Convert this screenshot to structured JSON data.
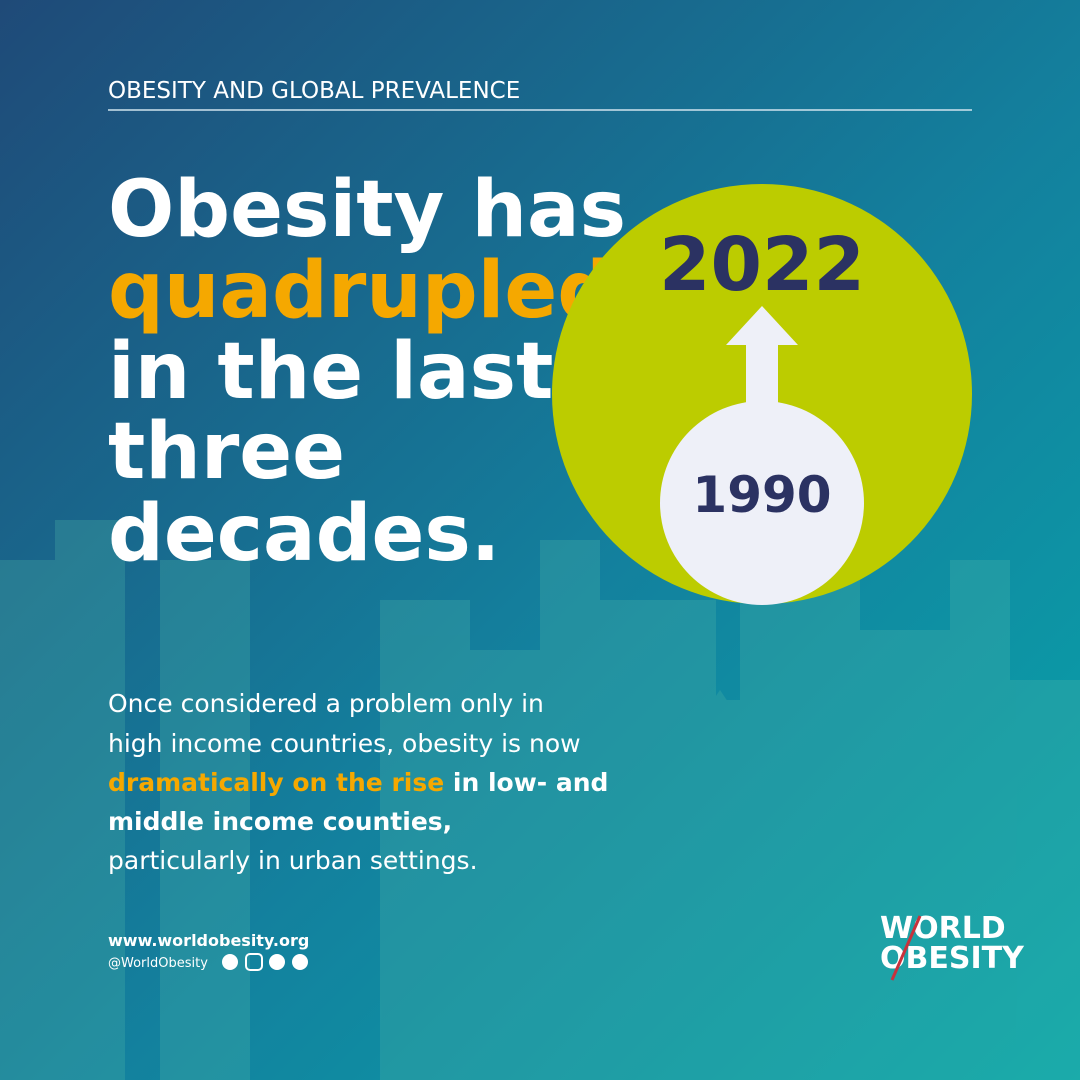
{
  "header": {
    "title": "OBESITY AND GLOBAL PREVALENCE"
  },
  "headline": {
    "lines": [
      "Obesity has",
      "quadrupled",
      "in the last",
      "three",
      "decades."
    ]
  },
  "graphic": {
    "current_year": "2022",
    "past_year": "1990"
  },
  "body": {
    "lines": [
      [
        "Once considered a problem only in"
      ],
      [
        "high income countries, obesity is now"
      ],
      [
        "dramatically on the rise",
        " in low- and"
      ],
      [
        "middle income counties,"
      ],
      [
        "particularly in urban settings."
      ]
    ]
  },
  "footer": {
    "website": "www.worldobesity.org",
    "handle": "@WorldObesity"
  },
  "logo": {
    "line1": "WORLD",
    "line2": "OBESITY"
  }
}
